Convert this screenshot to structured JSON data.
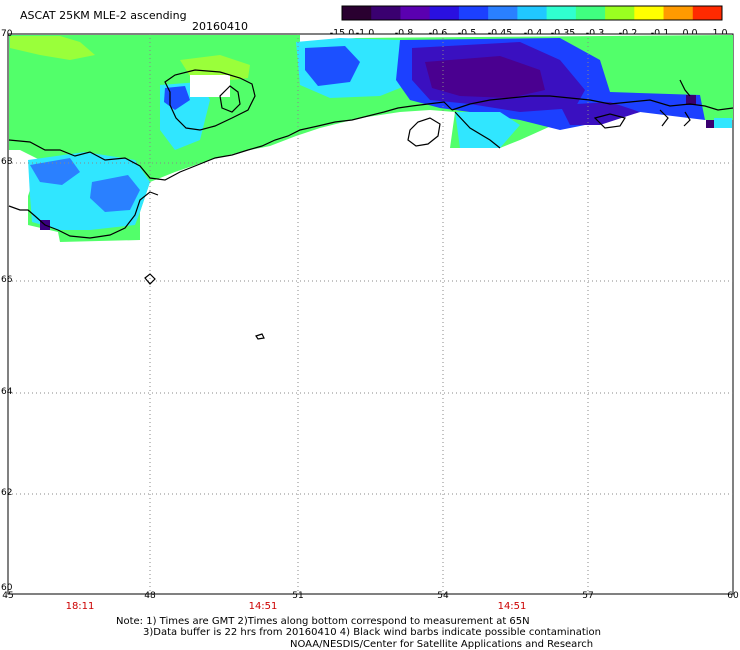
{
  "header": {
    "title": "ASCAT 25KM MLE-2 ascending",
    "date": "20160410"
  },
  "colorbar": {
    "labels": [
      "-15.0",
      "-1.0",
      "-0.8",
      "-0.6",
      "-0.5",
      "-0.45",
      "-0.4",
      "-0.35",
      "-0.3",
      "-0.2",
      "-0.1",
      "0.0",
      "1.0"
    ],
    "colors": [
      "#2a0030",
      "#3a0070",
      "#5a00b0",
      "#2a10e0",
      "#1c40ff",
      "#2a80ff",
      "#20c8ff",
      "#30ffd0",
      "#40ff80",
      "#9aff20",
      "#ffff00",
      "#ff9a00",
      "#ff2a00"
    ]
  },
  "map": {
    "lat_labels": [
      "70",
      "68",
      "66",
      "64",
      "62",
      "60"
    ],
    "lon_labels": [
      "45",
      "48",
      "51",
      "54",
      "57",
      "60"
    ],
    "time_labels": [
      "18:11",
      "14:51",
      "14:51"
    ]
  },
  "footer": {
    "note_line1": "Note: 1) Times are GMT 2)Times along bottom correspond to measurement at 65N",
    "note_line2": "3)Data buffer is 22 hrs from 20160410 4) Black wind barbs indicate possible contamination",
    "credit": "NOAA/NESDIS/Center for Satellite Applications and Research"
  },
  "colors": {
    "land_outline": "#000000",
    "grid": "#888888",
    "time_label": "#cc0000"
  }
}
